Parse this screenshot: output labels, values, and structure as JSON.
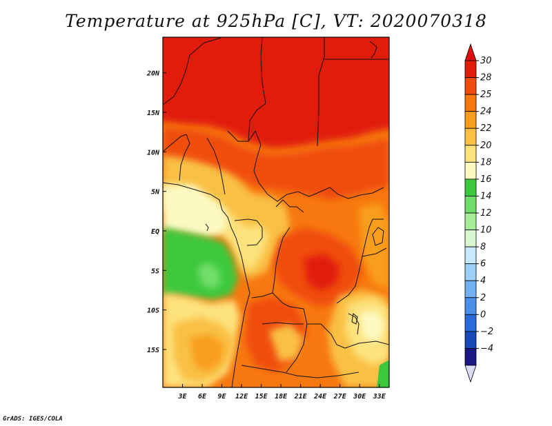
{
  "title": "Temperature at 925hPa [C], VT: 2020070318",
  "credit": "GrADS: IGES/COLA",
  "map": {
    "lon_range": [
      0,
      34.5
    ],
    "lat_range": [
      -19.8,
      24.5
    ],
    "lon_ticks": [
      {
        "value": 3,
        "label": "3E"
      },
      {
        "value": 6,
        "label": "6E"
      },
      {
        "value": 9,
        "label": "9E"
      },
      {
        "value": 12,
        "label": "12E"
      },
      {
        "value": 15,
        "label": "15E"
      },
      {
        "value": 18,
        "label": "18E"
      },
      {
        "value": 21,
        "label": "21E"
      },
      {
        "value": 24,
        "label": "24E"
      },
      {
        "value": 27,
        "label": "27E"
      },
      {
        "value": 30,
        "label": "30E"
      },
      {
        "value": 33,
        "label": "33E"
      }
    ],
    "lat_ticks": [
      {
        "value": 20,
        "label": "20N"
      },
      {
        "value": 15,
        "label": "15N"
      },
      {
        "value": 10,
        "label": "10N"
      },
      {
        "value": 5,
        "label": "5N"
      },
      {
        "value": 0,
        "label": "EQ"
      },
      {
        "value": -5,
        "label": "5S"
      },
      {
        "value": -10,
        "label": "10S"
      },
      {
        "value": -15,
        "label": "15S"
      }
    ]
  },
  "colorbar": {
    "labels": [
      "30",
      "28",
      "25",
      "24",
      "22",
      "20",
      "18",
      "16",
      "14",
      "12",
      "10",
      "8",
      "6",
      "4",
      "2",
      "0",
      "−2",
      "−4"
    ],
    "colors": [
      "#e11e0a",
      "#f04d0f",
      "#f7780f",
      "#f99e1e",
      "#f9c045",
      "#fde27d",
      "#fdf9c3",
      "#3cc83c",
      "#71de6c",
      "#a7ec99",
      "#d9f8d2",
      "#c8e8fb",
      "#9dd0f7",
      "#72b0f1",
      "#4c8fe8",
      "#2a6bd9",
      "#154ab8",
      "#1a1883"
    ],
    "top_cap_color": "#e01010",
    "bottom_cap_color": "#dcdcfa"
  }
}
